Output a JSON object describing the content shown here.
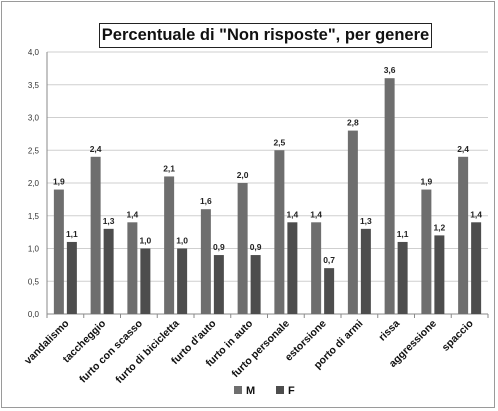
{
  "chart_data": {
    "type": "bar",
    "title": "Percentuale di \"Non risposte\", per genere",
    "categories": [
      "vandalismo",
      "taccheggio",
      "furto con scasso",
      "furto di bicicletta",
      "furto d'auto",
      "furto in auto",
      "furto personale",
      "estorsione",
      "porto di armi",
      "rissa",
      "aggressione",
      "spaccio"
    ],
    "series": [
      {
        "name": "M",
        "color": "#6e6e6e",
        "values": [
          1.9,
          2.4,
          1.4,
          2.1,
          1.6,
          2.0,
          2.5,
          1.4,
          2.8,
          3.6,
          1.9,
          2.4
        ],
        "labels": [
          "1,9",
          "2,4",
          "1,4",
          "2,1",
          "1,6",
          "2,0",
          "2,5",
          "1,4",
          "2,8",
          "3,6",
          "1,9",
          "2,4"
        ]
      },
      {
        "name": "F",
        "color": "#4d4d4d",
        "values": [
          1.1,
          1.3,
          1.0,
          1.0,
          0.9,
          0.9,
          1.4,
          0.7,
          1.3,
          1.1,
          1.2,
          1.4
        ],
        "labels": [
          "1,1",
          "1,3",
          "1,0",
          "1,0",
          "0,9",
          "0,9",
          "1,4",
          "0,7",
          "1,3",
          "1,1",
          "1,2",
          "1,4"
        ]
      }
    ],
    "ylim": [
      0,
      4.0
    ],
    "yticks": [
      0,
      0.5,
      1.0,
      1.5,
      2.0,
      2.5,
      3.0,
      3.5,
      4.0
    ],
    "ytick_labels": [
      "0,0",
      "0,5",
      "1,0",
      "1,5",
      "2,0",
      "2,5",
      "3,0",
      "3,5",
      "4,0"
    ],
    "grid": true,
    "legend_position": "bottom-center",
    "xlabel": "",
    "ylabel": ""
  }
}
